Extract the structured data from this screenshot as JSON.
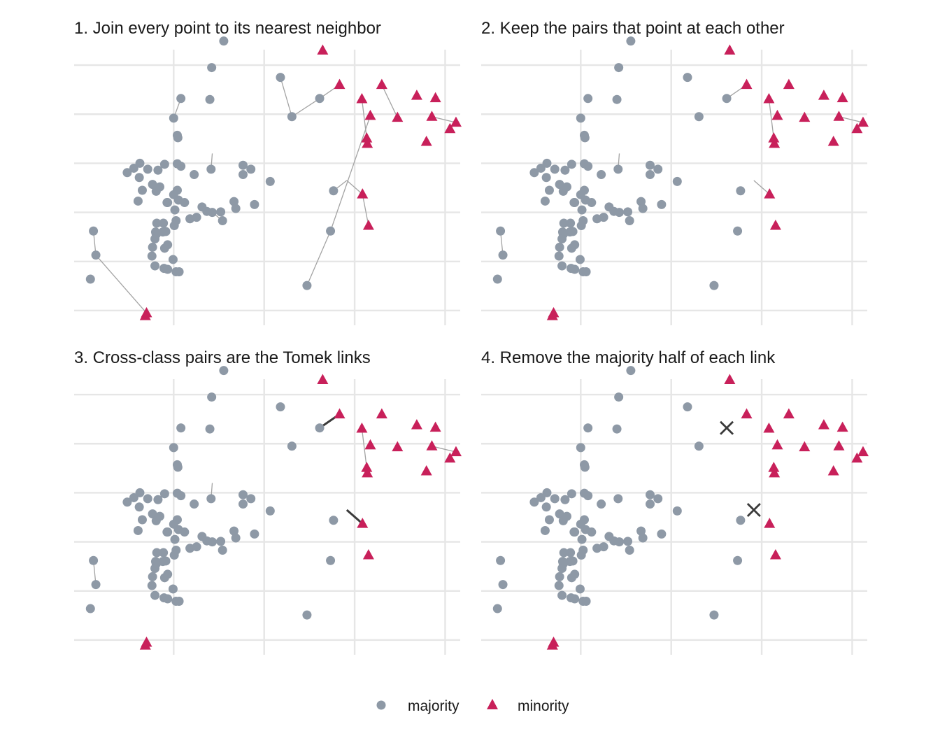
{
  "chart_data": [
    {
      "type": "scatter",
      "title": "1. Join every point to its nearest neighbor",
      "show_neighbor_lines": "all",
      "xlim": [
        -3.2,
        3.2
      ],
      "ylim": [
        -3.3,
        2.4
      ],
      "grid": true,
      "axis_ticks_labeled": false
    },
    {
      "type": "scatter",
      "title": "2. Keep the pairs that point at each other",
      "show_neighbor_lines": "mutual",
      "xlim": [
        -3.2,
        3.2
      ],
      "ylim": [
        -3.3,
        2.4
      ],
      "grid": true,
      "axis_ticks_labeled": false
    },
    {
      "type": "scatter",
      "title": "3. Cross-class pairs are the Tomek links",
      "show_neighbor_lines": "mutual",
      "highlight_tomek_links": true,
      "xlim": [
        -3.2,
        3.2
      ],
      "ylim": [
        -3.3,
        2.4
      ],
      "grid": true,
      "axis_ticks_labeled": false
    },
    {
      "type": "scatter",
      "title": "4. Remove the majority half of each link",
      "show_neighbor_lines": "none",
      "removed_majority_points": [
        [
          0.87,
          1.32
        ],
        [
          1.32,
          -0.35
        ]
      ],
      "xlim": [
        -3.2,
        3.2
      ],
      "ylim": [
        -3.3,
        2.4
      ],
      "grid": true,
      "axis_ticks_labeled": false
    }
  ],
  "points": {
    "majority": [
      [
        0.22,
        1.75
      ],
      [
        0.87,
        1.32
      ],
      [
        0.41,
        0.95
      ],
      [
        -1.43,
        1.32
      ],
      [
        -1.55,
        0.92
      ],
      [
        -1.49,
        0.57
      ],
      [
        -1.48,
        0.52
      ],
      [
        -1.49,
        -0.01
      ],
      [
        -1.21,
        -0.23
      ],
      [
        -1.43,
        -0.06
      ],
      [
        -1.81,
        -0.14
      ],
      [
        -1.98,
        -0.12
      ],
      [
        -2.12,
        -0.29
      ],
      [
        -2.07,
        -0.55
      ],
      [
        -1.9,
        -0.43
      ],
      [
        -1.84,
        -0.57
      ],
      [
        -1.78,
        -0.48
      ],
      [
        -1.66,
        -0.8
      ],
      [
        -1.49,
        -0.55
      ],
      [
        -1.47,
        -0.75
      ],
      [
        -1.53,
        -0.95
      ],
      [
        -1.28,
        -1.13
      ],
      [
        -1.51,
        -1.17
      ],
      [
        -1.72,
        -1.22
      ],
      [
        -1.83,
        -1.22
      ],
      [
        -1.73,
        -1.4
      ],
      [
        -1.85,
        -1.4
      ],
      [
        -1.84,
        -1.45
      ],
      [
        -1.68,
        -1.39
      ],
      [
        -1.86,
        -1.54
      ],
      [
        -1.9,
        -1.71
      ],
      [
        -1.65,
        -1.66
      ],
      [
        -1.7,
        -1.73
      ],
      [
        -1.91,
        -1.89
      ],
      [
        -1.54,
        -1.27
      ],
      [
        -1.56,
        -1.96
      ],
      [
        -1.46,
        -2.21
      ],
      [
        -1.51,
        -2.21
      ],
      [
        -1.86,
        -2.09
      ],
      [
        -1.71,
        -2.14
      ],
      [
        -2.14,
        -0.77
      ],
      [
        -2.21,
        -0.1
      ],
      [
        -2.32,
        -0.19
      ],
      [
        -2.11,
        0.0
      ],
      [
        -1.7,
        -0.02
      ],
      [
        -1.37,
        -0.8
      ],
      [
        -1.17,
        -1.1
      ],
      [
        -1.08,
        -0.89
      ],
      [
        -1.0,
        -0.98
      ],
      [
        -0.91,
        -1.0
      ],
      [
        -0.77,
        -0.99
      ],
      [
        -0.55,
        -0.78
      ],
      [
        -0.52,
        -0.92
      ],
      [
        -0.93,
        -0.12
      ],
      [
        -0.4,
        -0.04
      ],
      [
        -0.4,
        -0.23
      ],
      [
        -0.74,
        -1.17
      ],
      [
        -1.65,
        -0.8
      ],
      [
        -1.55,
        -0.64
      ],
      [
        -0.95,
        1.3
      ],
      [
        -0.27,
        -0.12
      ],
      [
        -2.88,
        -1.38
      ],
      [
        -2.84,
        -1.87
      ],
      [
        -1.65,
        -2.16
      ],
      [
        -2.93,
        -2.36
      ],
      [
        0.05,
        -0.37
      ],
      [
        1.05,
        -1.38
      ],
      [
        0.66,
        -2.49
      ],
      [
        -0.92,
        1.95
      ],
      [
        -0.72,
        2.49
      ],
      [
        -0.21,
        -0.84
      ],
      [
        1.1,
        -0.56
      ]
    ],
    "minority": [
      [
        0.92,
        2.3
      ],
      [
        1.65,
        0.51
      ],
      [
        1.57,
        1.31
      ],
      [
        1.71,
        0.97
      ],
      [
        2.16,
        0.93
      ],
      [
        1.66,
        0.4
      ],
      [
        2.64,
        0.44
      ],
      [
        1.2,
        1.6
      ],
      [
        1.9,
        1.6
      ],
      [
        1.58,
        -0.63
      ],
      [
        2.79,
        1.33
      ],
      [
        2.73,
        0.95
      ],
      [
        3.03,
        0.7
      ],
      [
        1.68,
        -1.27
      ],
      [
        3.13,
        0.83
      ],
      [
        2.48,
        1.38
      ],
      [
        -2.0,
        -3.05
      ],
      [
        -2.02,
        -3.11
      ]
    ]
  },
  "links": {
    "all": [
      [
        [
          -1.0,
          -0.98
        ],
        [
          -0.77,
          -0.99
        ]
      ],
      [
        [
          -0.74,
          -1.17
        ],
        [
          -0.91,
          -1.0
        ]
      ],
      [
        [
          -2.88,
          -1.38
        ],
        [
          -2.84,
          -1.87
        ]
      ],
      [
        [
          -2.84,
          -1.87
        ],
        [
          -2.0,
          -3.05
        ]
      ],
      [
        [
          0.22,
          1.75
        ],
        [
          0.41,
          0.95
        ]
      ],
      [
        [
          0.41,
          0.95
        ],
        [
          0.87,
          1.32
        ]
      ],
      [
        [
          -1.43,
          1.32
        ],
        [
          -1.55,
          0.92
        ]
      ],
      [
        [
          0.87,
          1.32
        ],
        [
          1.2,
          1.6
        ]
      ],
      [
        [
          -0.93,
          -0.12
        ],
        [
          -0.91,
          0.2
        ]
      ],
      [
        [
          1.05,
          -1.38
        ],
        [
          1.71,
          0.97
        ]
      ],
      [
        [
          1.57,
          1.31
        ],
        [
          1.65,
          0.51
        ]
      ],
      [
        [
          1.05,
          -1.38
        ],
        [
          0.66,
          -2.49
        ]
      ],
      [
        [
          -2.21,
          -0.1
        ],
        [
          -2.32,
          -0.19
        ]
      ],
      [
        [
          1.1,
          -0.56
        ],
        [
          1.32,
          -0.35
        ]
      ],
      [
        [
          1.9,
          1.6
        ],
        [
          2.16,
          0.93
        ]
      ],
      [
        [
          2.73,
          0.95
        ],
        [
          3.13,
          0.83
        ]
      ],
      [
        [
          3.03,
          0.7
        ],
        [
          3.13,
          0.83
        ]
      ],
      [
        [
          1.32,
          -0.35
        ],
        [
          1.58,
          -0.63
        ]
      ],
      [
        [
          1.68,
          -1.27
        ],
        [
          1.58,
          -0.63
        ]
      ]
    ],
    "mutual": [
      [
        [
          -2.88,
          -1.38
        ],
        [
          -2.84,
          -1.87
        ]
      ],
      [
        [
          0.87,
          1.32
        ],
        [
          1.2,
          1.6
        ]
      ],
      [
        [
          -0.93,
          -0.12
        ],
        [
          -0.91,
          0.2
        ]
      ],
      [
        [
          1.57,
          1.31
        ],
        [
          1.65,
          0.51
        ]
      ],
      [
        [
          2.73,
          0.95
        ],
        [
          3.13,
          0.83
        ]
      ],
      [
        [
          1.32,
          -0.35
        ],
        [
          1.58,
          -0.63
        ]
      ]
    ],
    "tomek": [
      [
        [
          0.87,
          1.32
        ],
        [
          1.2,
          1.6
        ]
      ],
      [
        [
          1.32,
          -0.35
        ],
        [
          1.58,
          -0.63
        ]
      ]
    ]
  },
  "legend": {
    "items": [
      {
        "label": "majority",
        "shape": "circle",
        "color": "#8e99a6"
      },
      {
        "label": "minority",
        "shape": "triangle",
        "color": "#c8205a"
      }
    ],
    "position": "bottom"
  },
  "colors": {
    "majority": "#8e99a6",
    "minority": "#c8205a",
    "grid": "#e6e6e6",
    "link": "#a3a3a3",
    "tomek_link": "#3a3a3a",
    "removed_marker": "#3a3a3a"
  }
}
